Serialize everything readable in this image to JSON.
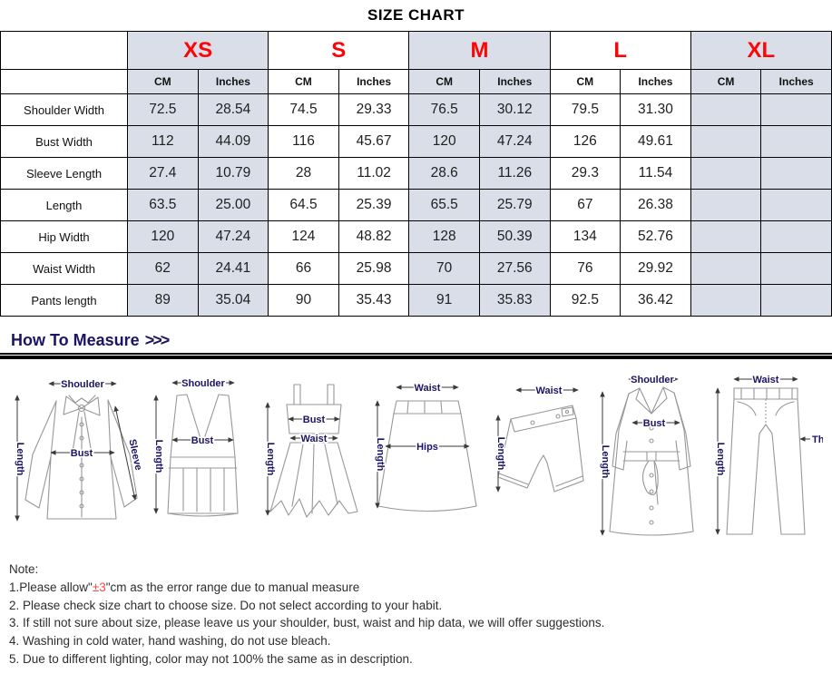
{
  "title": "SIZE CHART",
  "colors": {
    "size_label_red": "#fe0505",
    "shaded_cell": "#d9dee8",
    "measure_heading_navy": "#1b1464",
    "note_highlight_red": "#ff4747"
  },
  "size_table": {
    "sizes": [
      {
        "label": "XS",
        "shaded": true
      },
      {
        "label": "S",
        "shaded": false
      },
      {
        "label": "M",
        "shaded": true
      },
      {
        "label": "L",
        "shaded": false
      },
      {
        "label": "XL",
        "shaded": true
      }
    ],
    "unit_headers": [
      "CM",
      "Inches"
    ],
    "rows": [
      {
        "label": "Shoulder Width",
        "values": [
          "72.5",
          "28.54",
          "74.5",
          "29.33",
          "76.5",
          "30.12",
          "79.5",
          "31.30",
          "",
          ""
        ]
      },
      {
        "label": "Bust Width",
        "values": [
          "112",
          "44.09",
          "116",
          "45.67",
          "120",
          "47.24",
          "126",
          "49.61",
          "",
          ""
        ]
      },
      {
        "label": "Sleeve Length",
        "values": [
          "27.4",
          "10.79",
          "28",
          "11.02",
          "28.6",
          "11.26",
          "29.3",
          "11.54",
          "",
          ""
        ]
      },
      {
        "label": "Length",
        "values": [
          "63.5",
          "25.00",
          "64.5",
          "25.39",
          "65.5",
          "25.79",
          "67",
          "26.38",
          "",
          ""
        ]
      },
      {
        "label": "Hip Width",
        "values": [
          "120",
          "47.24",
          "124",
          "48.82",
          "128",
          "50.39",
          "134",
          "52.76",
          "",
          ""
        ]
      },
      {
        "label": "Waist Width",
        "values": [
          "62",
          "24.41",
          "66",
          "25.98",
          "70",
          "27.56",
          "76",
          "29.92",
          "",
          ""
        ]
      },
      {
        "label": "Pants length",
        "values": [
          "89",
          "35.04",
          "90",
          "35.43",
          "91",
          "35.83",
          "92.5",
          "36.42",
          "",
          ""
        ]
      }
    ]
  },
  "measure_heading": {
    "text": "How To Measure",
    "chevrons": ">>>"
  },
  "measure_figures": [
    {
      "garment": "blouse",
      "labels": {
        "shoulder": "Shoulder",
        "length": "Length",
        "bust": "Bust",
        "sleeve": "Sleeve"
      }
    },
    {
      "garment": "tank-top",
      "labels": {
        "shoulder": "Shoulder",
        "length": "Length",
        "bust": "Bust"
      }
    },
    {
      "garment": "dress",
      "labels": {
        "length": "Length",
        "bust": "Bust",
        "waist": "Waist"
      }
    },
    {
      "garment": "skirt",
      "labels": {
        "waist": "Waist",
        "length": "Length",
        "hips": "Hips"
      }
    },
    {
      "garment": "shorts",
      "labels": {
        "waist": "Waist",
        "length": "Length"
      }
    },
    {
      "garment": "coat",
      "labels": {
        "shoulder": "Shoulder",
        "length": "Length",
        "bust": "Bust"
      }
    },
    {
      "garment": "pants",
      "labels": {
        "waist": "Waist",
        "length": "Length",
        "thigh": "Thigh"
      }
    }
  ],
  "notes": {
    "heading": "Note:",
    "line1": {
      "prefix": "1.Please allow\"",
      "highlight": "±3",
      "suffix": "\"cm as the error range due to manual measure"
    },
    "line2": "2. Please check size chart to choose size. Do not select according to your habit.",
    "line3": "3. If still not sure about size, please leave us your shoulder, bust, waist and hip data, we will offer suggestions.",
    "line4": "4. Washing in cold water, hand washing, do not use bleach.",
    "line5": "5. Due to different lighting, color may not 100% the same as in description."
  }
}
